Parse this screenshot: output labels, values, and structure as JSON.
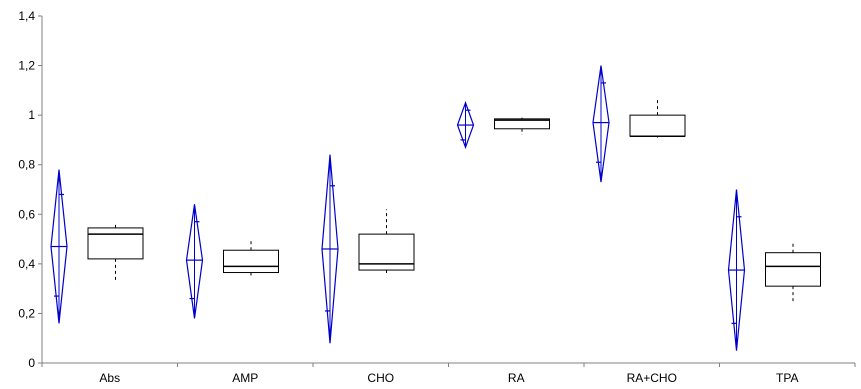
{
  "chart_data": {
    "type": "box-diamond",
    "categories": [
      "Abs",
      "AMP",
      "CHO",
      "RA",
      "RA+CHO",
      "TPA"
    ],
    "ylim": [
      0,
      1.4
    ],
    "yticks": [
      "0",
      "0,2",
      "0,4",
      "0,6",
      "0,8",
      "1",
      "1,2",
      "1,4"
    ],
    "ytick_values": [
      0,
      0.2,
      0.4,
      0.6,
      0.8,
      1.0,
      1.2,
      1.4
    ],
    "diamonds": [
      {
        "category": "Abs",
        "mean": 0.47,
        "low": 0.16,
        "high": 0.78,
        "ci_low": 0.27,
        "ci_high": 0.68
      },
      {
        "category": "AMP",
        "mean": 0.415,
        "low": 0.18,
        "high": 0.64,
        "ci_low": 0.26,
        "ci_high": 0.57
      },
      {
        "category": "CHO",
        "mean": 0.46,
        "low": 0.08,
        "high": 0.84,
        "ci_low": 0.21,
        "ci_high": 0.715
      },
      {
        "category": "RA",
        "mean": 0.96,
        "low": 0.87,
        "high": 1.05,
        "ci_low": 0.9,
        "ci_high": 1.02
      },
      {
        "category": "RA+CHO",
        "mean": 0.97,
        "low": 0.73,
        "high": 1.2,
        "ci_low": 0.81,
        "ci_high": 1.13
      },
      {
        "category": "TPA",
        "mean": 0.375,
        "low": 0.05,
        "high": 0.7,
        "ci_low": 0.16,
        "ci_high": 0.59
      }
    ],
    "boxes": [
      {
        "category": "Abs",
        "min": 0.33,
        "q1": 0.42,
        "median": 0.52,
        "q3": 0.545,
        "max": 0.56
      },
      {
        "category": "AMP",
        "min": 0.35,
        "q1": 0.365,
        "median": 0.39,
        "q3": 0.455,
        "max": 0.5
      },
      {
        "category": "CHO",
        "min": 0.36,
        "q1": 0.375,
        "median": 0.4,
        "q3": 0.52,
        "max": 0.62
      },
      {
        "category": "RA",
        "min": 0.92,
        "q1": 0.945,
        "median": 0.98,
        "q3": 0.985,
        "max": 0.99
      },
      {
        "category": "RA+CHO",
        "min": 0.91,
        "q1": 0.915,
        "median": 0.915,
        "q3": 1.0,
        "max": 1.07
      },
      {
        "category": "TPA",
        "min": 0.24,
        "q1": 0.31,
        "median": 0.39,
        "q3": 0.445,
        "max": 0.49
      }
    ],
    "colors": {
      "diamond": "#0000cc",
      "box": "#000000",
      "axis": "#808080"
    },
    "grid": false,
    "legend": "none"
  }
}
